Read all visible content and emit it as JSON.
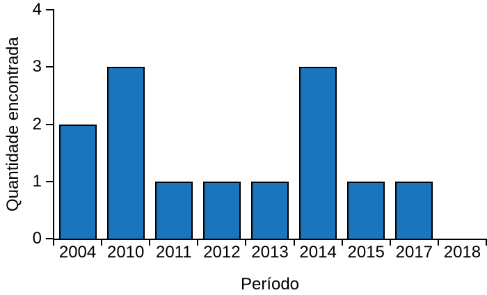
{
  "chart_data": {
    "type": "bar",
    "categories": [
      "2004",
      "2010",
      "2011",
      "2012",
      "2013",
      "2014",
      "2015",
      "2017",
      "2018"
    ],
    "values": [
      2,
      3,
      1,
      1,
      1,
      3,
      1,
      1,
      0
    ],
    "title": "",
    "xlabel": "Período",
    "ylabel": "Quantidade encontrada",
    "ylim": [
      0,
      4
    ],
    "yticks": [
      0,
      1,
      2,
      3,
      4
    ],
    "x_ticks_at_bin_edges": true,
    "grid": false,
    "legend": false,
    "bar_color": "#1b75bc",
    "edge_color": "#000000",
    "text_color": "#000000",
    "background_color": "#ffffff"
  }
}
